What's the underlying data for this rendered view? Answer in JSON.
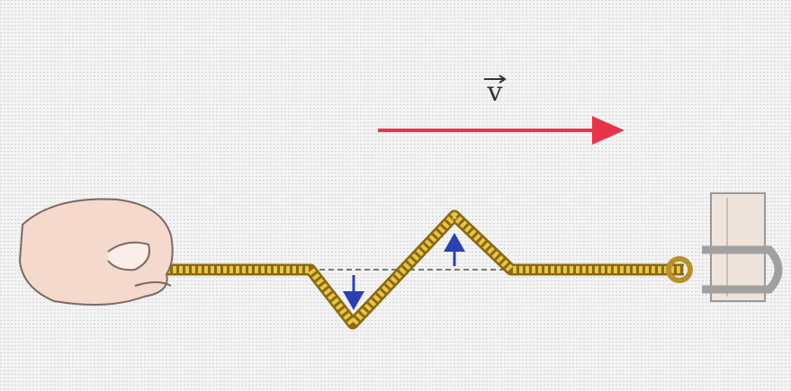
{
  "labels": {
    "velocity": "v"
  }
}
